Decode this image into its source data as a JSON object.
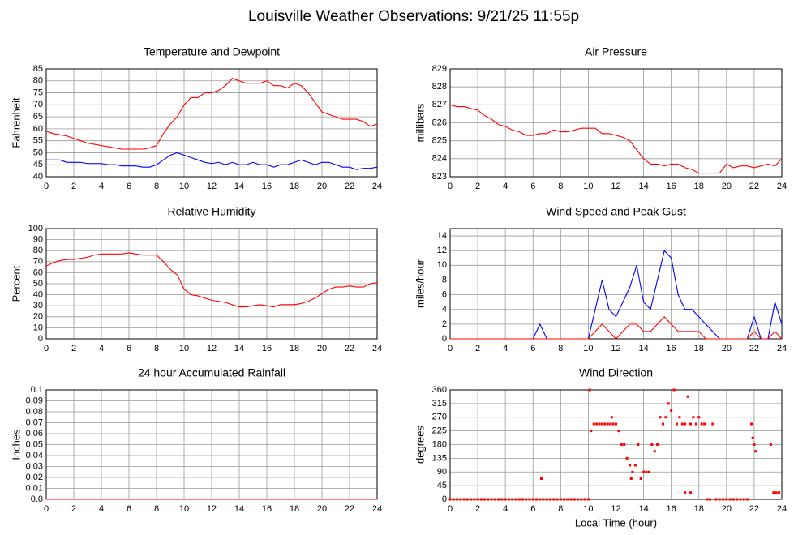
{
  "title": "Louisville Weather Observations: 9/21/25 11:55p",
  "chart_data": [
    {
      "type": "line",
      "title": "Temperature and Dewpoint",
      "ylabel": "Fahrenheit",
      "x": [
        0,
        0.5,
        1,
        1.5,
        2,
        2.5,
        3,
        3.5,
        4,
        4.5,
        5,
        5.5,
        6,
        6.5,
        7,
        7.5,
        8,
        8.5,
        9,
        9.5,
        10,
        10.5,
        11,
        11.5,
        12,
        12.5,
        13,
        13.5,
        14,
        14.5,
        15,
        15.5,
        16,
        16.5,
        17,
        17.5,
        18,
        18.5,
        19,
        19.5,
        20,
        20.5,
        21,
        21.5,
        22,
        22.5,
        23,
        23.5,
        24
      ],
      "series": [
        {
          "color": "#ff0000",
          "values": [
            59,
            58,
            57.5,
            57,
            56,
            55,
            54,
            53.5,
            53,
            52.5,
            52,
            51.5,
            51.5,
            51.5,
            51.5,
            52,
            53,
            58,
            62,
            65,
            70,
            73,
            73,
            75,
            75,
            76,
            78,
            81,
            80,
            79,
            79,
            79,
            80,
            78,
            78,
            77,
            79,
            78,
            75,
            71,
            67,
            66,
            65,
            64,
            64,
            64,
            63,
            61,
            62
          ]
        },
        {
          "color": "#0000ff",
          "values": [
            47,
            47,
            47,
            46,
            46,
            46,
            45.5,
            45.5,
            45.5,
            45,
            45,
            44.5,
            44.5,
            44.5,
            44,
            44,
            45,
            47,
            49,
            50,
            49,
            48,
            47,
            46,
            45.5,
            46,
            45,
            46,
            45,
            45,
            46,
            45,
            45,
            44,
            45,
            45,
            46,
            47,
            46,
            45,
            46,
            46,
            45,
            44,
            44,
            43,
            43.5,
            43.5,
            44
          ]
        }
      ],
      "xlim": [
        0,
        24
      ],
      "xticks": [
        0,
        2,
        4,
        6,
        8,
        10,
        12,
        14,
        16,
        18,
        20,
        22,
        24
      ],
      "ylim": [
        40,
        85
      ],
      "yticks": [
        40,
        45,
        50,
        55,
        60,
        65,
        70,
        75,
        80,
        85
      ],
      "grid": true
    },
    {
      "type": "line",
      "title": "Air Pressure",
      "ylabel": "millibars",
      "x": [
        0,
        0.5,
        1,
        1.5,
        2,
        2.5,
        3,
        3.5,
        4,
        4.5,
        5,
        5.5,
        6,
        6.5,
        7,
        7.5,
        8,
        8.5,
        9,
        9.5,
        10,
        10.5,
        11,
        11.5,
        12,
        12.5,
        13,
        13.5,
        14,
        14.5,
        15,
        15.5,
        16,
        16.5,
        17,
        17.5,
        18,
        18.5,
        19,
        19.5,
        20,
        20.5,
        21,
        21.5,
        22,
        22.5,
        23,
        23.5,
        24
      ],
      "series": [
        {
          "color": "#ff0000",
          "values": [
            827,
            826.9,
            826.9,
            826.8,
            826.7,
            826.4,
            826.2,
            825.9,
            825.8,
            825.6,
            825.5,
            825.3,
            825.3,
            825.4,
            825.4,
            825.6,
            825.5,
            825.5,
            825.6,
            825.7,
            825.7,
            825.7,
            825.4,
            825.4,
            825.3,
            825.2,
            825,
            824.5,
            824,
            823.7,
            823.7,
            823.6,
            823.7,
            823.7,
            823.5,
            823.4,
            823.2,
            823.2,
            823.2,
            823.2,
            823.7,
            823.5,
            823.6,
            823.6,
            823.5,
            823.6,
            823.7,
            823.6,
            824
          ]
        }
      ],
      "xlim": [
        0,
        24
      ],
      "xticks": [
        0,
        2,
        4,
        6,
        8,
        10,
        12,
        14,
        16,
        18,
        20,
        22,
        24
      ],
      "ylim": [
        823,
        829
      ],
      "yticks": [
        823,
        824,
        825,
        826,
        827,
        828,
        829
      ],
      "grid": true
    },
    {
      "type": "line",
      "title": "Relative Humidity",
      "ylabel": "Percent",
      "x": [
        0,
        0.5,
        1,
        1.5,
        2,
        2.5,
        3,
        3.5,
        4,
        4.5,
        5,
        5.5,
        6,
        6.5,
        7,
        7.5,
        8,
        8.5,
        9,
        9.5,
        10,
        10.5,
        11,
        11.5,
        12,
        12.5,
        13,
        13.5,
        14,
        14.5,
        15,
        15.5,
        16,
        16.5,
        17,
        17.5,
        18,
        18.5,
        19,
        19.5,
        20,
        20.5,
        21,
        21.5,
        22,
        22.5,
        23,
        23.5,
        24
      ],
      "series": [
        {
          "color": "#ff0000",
          "values": [
            66,
            69,
            71,
            72,
            72,
            73,
            74,
            76,
            77,
            77,
            77,
            77,
            78,
            77,
            76,
            76,
            76,
            70,
            63,
            58,
            45,
            40,
            39,
            37,
            35,
            34,
            33,
            31,
            29,
            29,
            30,
            31,
            30,
            29,
            31,
            31,
            31,
            32,
            34,
            37,
            41,
            45,
            47,
            47,
            48,
            47,
            47,
            50,
            51
          ]
        }
      ],
      "xlim": [
        0,
        24
      ],
      "xticks": [
        0,
        2,
        4,
        6,
        8,
        10,
        12,
        14,
        16,
        18,
        20,
        22,
        24
      ],
      "ylim": [
        0,
        100
      ],
      "yticks": [
        0,
        10,
        20,
        30,
        40,
        50,
        60,
        70,
        80,
        90,
        100
      ],
      "grid": true
    },
    {
      "type": "line",
      "title": "Wind Speed and Peak Gust",
      "ylabel": "miles/hour",
      "x": [
        0,
        0.5,
        1,
        1.5,
        2,
        2.5,
        3,
        3.5,
        4,
        4.5,
        5,
        5.5,
        6,
        6.5,
        7,
        7.5,
        8,
        8.5,
        9,
        9.5,
        10,
        10.5,
        11,
        11.5,
        12,
        12.5,
        13,
        13.5,
        14,
        14.5,
        15,
        15.5,
        16,
        16.5,
        17,
        17.5,
        18,
        18.5,
        19,
        19.5,
        20,
        20.5,
        21,
        21.5,
        22,
        22.5,
        23,
        23.5,
        24
      ],
      "series": [
        {
          "color": "#0000ff",
          "values": [
            0,
            0,
            0,
            0,
            0,
            0,
            0,
            0,
            0,
            0,
            0,
            0,
            0,
            2,
            0,
            0,
            0,
            0,
            0,
            0,
            0,
            4,
            8,
            4,
            3,
            5,
            7,
            10,
            5,
            4,
            8,
            12,
            11,
            6,
            4,
            4,
            3,
            2,
            1,
            0,
            0,
            0,
            0,
            0,
            3,
            0,
            0,
            5,
            2
          ]
        },
        {
          "color": "#ff0000",
          "values": [
            0,
            0,
            0,
            0,
            0,
            0,
            0,
            0,
            0,
            0,
            0,
            0,
            0,
            0,
            0,
            0,
            0,
            0,
            0,
            0,
            0,
            1,
            2,
            1,
            0,
            1,
            2,
            2,
            1,
            1,
            2,
            3,
            2,
            1,
            1,
            1,
            1,
            0,
            0,
            0,
            0,
            0,
            0,
            0,
            1,
            0,
            0,
            1,
            0
          ]
        }
      ],
      "xlim": [
        0,
        24
      ],
      "xticks": [
        0,
        2,
        4,
        6,
        8,
        10,
        12,
        14,
        16,
        18,
        20,
        22,
        24
      ],
      "ylim": [
        0,
        15
      ],
      "yticks": [
        0,
        2,
        4,
        6,
        8,
        10,
        12,
        14
      ],
      "grid": true
    },
    {
      "type": "line",
      "title": "24 hour Accumulated Rainfall",
      "ylabel": "Inches",
      "x": [
        0,
        24
      ],
      "series": [
        {
          "color": "#ff0000",
          "values": [
            0,
            0
          ]
        }
      ],
      "xlim": [
        0,
        24
      ],
      "xticks": [
        0,
        2,
        4,
        6,
        8,
        10,
        12,
        14,
        16,
        18,
        20,
        22,
        24
      ],
      "ylim": [
        0,
        0.1
      ],
      "yticks": [
        {
          "value": 0,
          "label": "0.0"
        },
        0.01,
        0.02,
        0.03,
        0.04,
        0.05,
        0.06,
        0.07,
        0.08,
        0.09,
        0.1
      ],
      "grid": true
    },
    {
      "type": "scatter",
      "title": "Wind Direction",
      "ylabel": "degrees",
      "xlabel": "Local Time (hour)",
      "x": [
        0,
        0.25,
        0.5,
        0.75,
        1,
        1.25,
        1.5,
        1.75,
        2,
        2.25,
        2.5,
        2.75,
        3,
        3.25,
        3.5,
        3.75,
        4,
        4.25,
        4.5,
        4.75,
        5,
        5.25,
        5.5,
        5.75,
        6,
        6.25,
        6.5,
        6.75,
        7,
        7.25,
        7.5,
        7.75,
        8,
        8.25,
        8.5,
        8.75,
        9,
        9.25,
        9.5,
        9.75,
        10,
        6.6,
        10.1,
        10.2,
        10.4,
        10.6,
        10.8,
        11,
        11.2,
        11.4,
        11.6,
        11.8,
        12,
        11.7,
        12.2,
        12.4,
        12.6,
        12.8,
        13,
        13.1,
        13.2,
        13.4,
        13.6,
        13.8,
        14,
        14.2,
        14.4,
        14.6,
        14.8,
        15,
        15.2,
        15.4,
        15.6,
        15.8,
        16,
        16.2,
        16.4,
        16.6,
        16.8,
        17,
        17.2,
        17.4,
        17.6,
        17.8,
        18,
        18.2,
        18.4,
        19,
        18.6,
        18.8,
        19.25,
        19.5,
        19.75,
        20,
        20.25,
        20.5,
        20.75,
        21,
        21.25,
        21.5,
        21.8,
        21.9,
        22,
        22.1,
        23.2,
        23.4,
        23.6,
        23.8,
        17,
        17.4
      ],
      "series": [
        {
          "color": "#ff0000",
          "values": [
            0,
            0,
            0,
            0,
            0,
            0,
            0,
            0,
            0,
            0,
            0,
            0,
            0,
            0,
            0,
            0,
            0,
            0,
            0,
            0,
            0,
            0,
            0,
            0,
            0,
            0,
            0,
            0,
            0,
            0,
            0,
            0,
            0,
            0,
            0,
            0,
            0,
            0,
            0,
            0,
            0,
            68,
            360,
            225,
            248,
            248,
            248,
            248,
            248,
            248,
            248,
            248,
            248,
            270,
            225,
            180,
            180,
            135,
            112,
            68,
            90,
            112,
            180,
            68,
            90,
            90,
            90,
            180,
            158,
            180,
            270,
            248,
            270,
            315,
            292,
            360,
            248,
            270,
            248,
            248,
            338,
            248,
            270,
            248,
            270,
            248,
            248,
            248,
            0,
            0,
            0,
            0,
            0,
            0,
            0,
            0,
            0,
            0,
            0,
            0,
            248,
            202,
            180,
            158,
            180,
            22,
            22,
            22,
            22,
            22
          ]
        }
      ],
      "xlim": [
        0,
        24
      ],
      "xticks": [
        0,
        2,
        4,
        6,
        8,
        10,
        12,
        14,
        16,
        18,
        20,
        22,
        24
      ],
      "ylim": [
        0,
        360
      ],
      "yticks": [
        0,
        45,
        90,
        135,
        180,
        225,
        270,
        315,
        360
      ],
      "grid": true
    }
  ]
}
